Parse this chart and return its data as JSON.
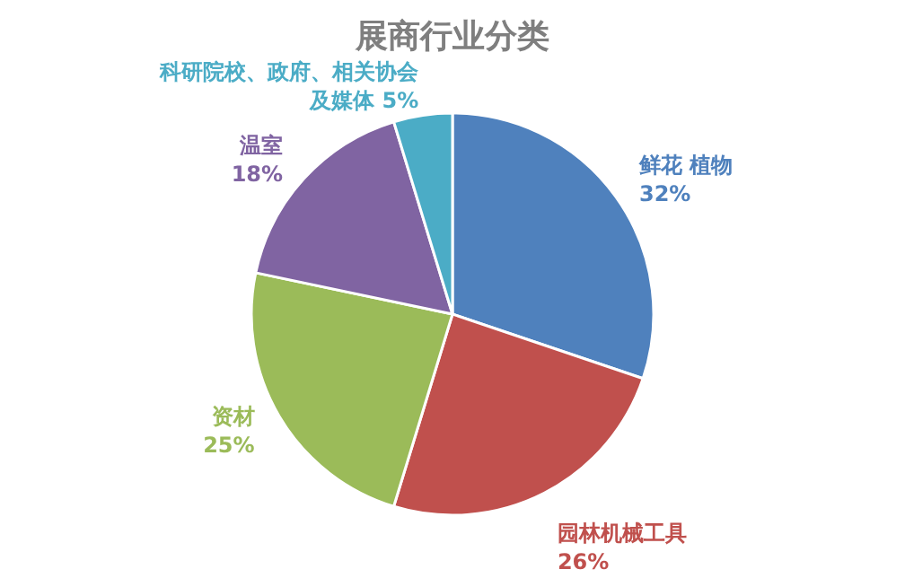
{
  "chart_data": {
    "type": "pie",
    "title": "展商行业分类",
    "categories": [
      "鲜花 植物",
      "园林机械工具",
      "资材",
      "温室",
      "科研院校、政府、相关协会及媒体"
    ],
    "values": [
      32,
      26,
      25,
      18,
      5
    ],
    "colors": [
      "#4f81bd",
      "#c0504d",
      "#9bbb59",
      "#8064a2",
      "#4bacc6"
    ],
    "value_labels": [
      "32%",
      "26%",
      "25%",
      "18%",
      "5%"
    ]
  }
}
